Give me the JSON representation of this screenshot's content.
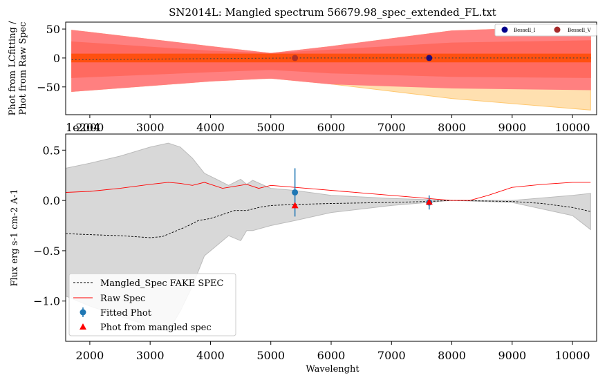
{
  "chart_data": [
    {
      "type": "area",
      "title": "SN2014L: Mangled spectrum 56679.98_spec_extended_FL.txt",
      "ylabel_lines": [
        "Phot from LCfitting /",
        "Phot from Raw Spec"
      ],
      "xlabel": "",
      "offset_label": "1e204",
      "x_ticks": [
        2000,
        3000,
        4000,
        5000,
        6000,
        7000,
        8000,
        9000,
        10000
      ],
      "y_ticks": [
        -50,
        0,
        50
      ],
      "xlim": [
        1600,
        10400
      ],
      "ylim": [
        -98,
        62
      ],
      "bands": [
        {
          "color": "#ffe0b0",
          "edge": "#ffc870",
          "x": [
            1700,
            4000,
            5000,
            6000,
            8000,
            10300
          ],
          "upper": [
            48,
            20,
            8,
            20,
            47,
            55
          ],
          "lower": [
            -58,
            -40,
            -35,
            -45,
            -70,
            -90
          ]
        },
        {
          "color": "#ff8080",
          "edge": "#ff8080",
          "x": [
            1700,
            4000,
            5000,
            6000,
            8000,
            10300
          ],
          "upper": [
            48,
            20,
            8,
            20,
            47,
            55
          ],
          "lower": [
            -58,
            -40,
            -35,
            -45,
            -52,
            -55
          ]
        },
        {
          "color": "#ff6a60",
          "edge": "#ff6a60",
          "x": [
            1700,
            4000,
            5000,
            6000,
            8000,
            10300
          ],
          "upper": [
            28,
            12,
            8,
            14,
            26,
            30
          ],
          "lower": [
            -34,
            -24,
            -20,
            -26,
            -32,
            -34
          ]
        },
        {
          "color": "#ff5010",
          "edge": "#ff5010",
          "x": [
            1700,
            10300
          ],
          "upper": [
            7,
            7
          ],
          "lower": [
            -7,
            -7
          ]
        }
      ],
      "dotted_line": {
        "x": [
          1700,
          3000,
          5400,
          7600,
          10300
        ],
        "y": [
          -3,
          -2,
          0,
          0,
          0
        ]
      },
      "points": [
        {
          "name": "Bessell_I",
          "x": 7625,
          "y": 0,
          "color": "#00008b"
        },
        {
          "name": "Bessell_V",
          "x": 5400,
          "y": 0,
          "color": "#a52a2a"
        }
      ],
      "legend": {
        "placement": "top-right",
        "entries": [
          "Bessell_I",
          "Bessell_V"
        ]
      }
    },
    {
      "type": "line",
      "title": "",
      "xlabel": "Wavelenght",
      "ylabel": "Flux erg s-1 cm-2 A-1",
      "x_ticks": [
        2000,
        3000,
        4000,
        5000,
        6000,
        7000,
        8000,
        9000,
        10000
      ],
      "y_ticks": [
        -1.0,
        -0.5,
        0.0,
        0.5
      ],
      "xlim": [
        1600,
        10400
      ],
      "ylim": [
        -1.4,
        0.66
      ],
      "band": {
        "color": "#d8d8d8",
        "x": [
          1600,
          2000,
          2500,
          3000,
          3300,
          3500,
          3700,
          3900,
          4100,
          4300,
          4500,
          4600,
          4700,
          5000,
          5400,
          6000,
          7000,
          8000,
          9000,
          10000,
          10300
        ],
        "upper": [
          0.32,
          0.37,
          0.44,
          0.53,
          0.57,
          0.53,
          0.42,
          0.27,
          0.21,
          0.15,
          0.21,
          0.16,
          0.2,
          0.12,
          0.1,
          0.05,
          0.02,
          0.0,
          0.0,
          0.05,
          0.07
        ],
        "lower": [
          -0.95,
          -1.05,
          -1.15,
          -1.25,
          -1.3,
          -1.1,
          -0.85,
          -0.55,
          -0.45,
          -0.35,
          -0.4,
          -0.3,
          -0.3,
          -0.25,
          -0.2,
          -0.12,
          -0.05,
          0.0,
          -0.02,
          -0.15,
          -0.29
        ]
      },
      "series": [
        {
          "name": "Mangled_Spec FAKE SPEC",
          "style": "dashed",
          "color": "#000000",
          "x": [
            1600,
            2000,
            2500,
            3000,
            3200,
            3400,
            3600,
            3800,
            4000,
            4200,
            4400,
            4600,
            4800,
            5000,
            5400,
            6000,
            7000,
            7600,
            8000,
            9000,
            9500,
            10000,
            10300
          ],
          "y": [
            -0.33,
            -0.34,
            -0.35,
            -0.37,
            -0.36,
            -0.31,
            -0.26,
            -0.2,
            -0.18,
            -0.14,
            -0.1,
            -0.1,
            -0.07,
            -0.05,
            -0.04,
            -0.03,
            -0.02,
            -0.01,
            0.0,
            -0.01,
            -0.03,
            -0.07,
            -0.11
          ]
        },
        {
          "name": "Raw Spec",
          "style": "solid",
          "color": "#ff0000",
          "x": [
            1600,
            2000,
            2500,
            3000,
            3300,
            3500,
            3700,
            3900,
            4000,
            4200,
            4400,
            4600,
            4800,
            5000,
            5200,
            5400,
            5800,
            6200,
            6600,
            7000,
            7400,
            7800,
            8000,
            8300,
            8600,
            9000,
            9500,
            10000,
            10300
          ],
          "y": [
            0.08,
            0.09,
            0.12,
            0.16,
            0.18,
            0.17,
            0.15,
            0.18,
            0.16,
            0.12,
            0.14,
            0.16,
            0.12,
            0.15,
            0.14,
            0.13,
            0.11,
            0.09,
            0.07,
            0.05,
            0.03,
            0.01,
            0.0,
            0.0,
            0.05,
            0.13,
            0.16,
            0.18,
            0.18
          ]
        }
      ],
      "fitted_phot": [
        {
          "x": 5400,
          "y": 0.08,
          "err": 0.24
        },
        {
          "x": 7625,
          "y": -0.02,
          "err": 0.07
        }
      ],
      "phot_from_mangled_spec": [
        {
          "x": 5400,
          "y": -0.05
        },
        {
          "x": 7625,
          "y": -0.015
        }
      ],
      "legend": {
        "placement": "lower-left",
        "entries": [
          "Mangled_Spec FAKE SPEC",
          "Raw Spec",
          "Fitted Phot",
          "Phot from mangled spec"
        ]
      }
    }
  ]
}
